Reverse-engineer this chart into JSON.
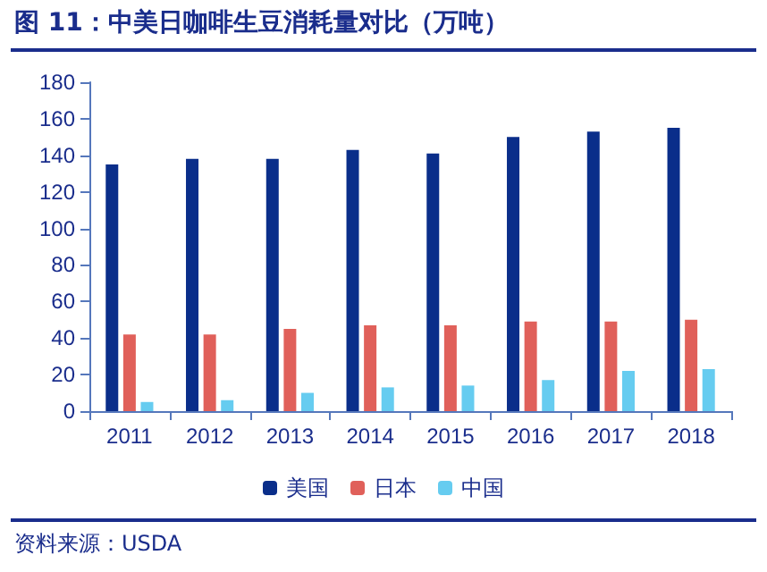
{
  "chart_data": {
    "type": "bar",
    "title": "图 11：中美日咖啡生豆消耗量对比（万吨）",
    "categories": [
      "2011",
      "2012",
      "2013",
      "2014",
      "2015",
      "2016",
      "2017",
      "2018"
    ],
    "series": [
      {
        "name": "美国",
        "color": "#0a2e8a",
        "values": [
          135,
          138,
          138,
          143,
          141,
          150,
          153,
          155
        ]
      },
      {
        "name": "日本",
        "color": "#e0605a",
        "values": [
          42,
          42,
          45,
          47,
          47,
          49,
          49,
          50
        ]
      },
      {
        "name": "中国",
        "color": "#66ccf0",
        "values": [
          5,
          6,
          10,
          13,
          14,
          17,
          22,
          23
        ]
      }
    ],
    "ylim": [
      0,
      180
    ],
    "yticks": [
      0,
      20,
      40,
      60,
      80,
      100,
      120,
      140,
      160,
      180
    ],
    "grid": false,
    "legend": "bottom",
    "annotations": [
      "资料来源：USDA"
    ]
  }
}
